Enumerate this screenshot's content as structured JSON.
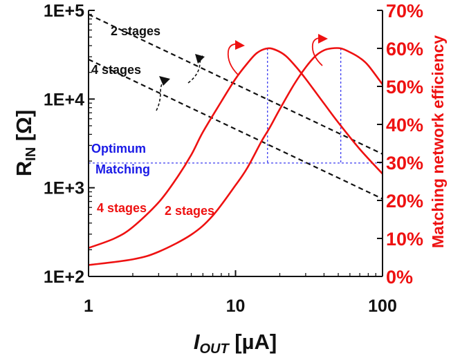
{
  "colors": {
    "rin": "#111111",
    "efficiency": "#ee1111",
    "guide": "#3a3af0",
    "annotation_blue": "#1a1ae6"
  },
  "chart_data": {
    "type": "line",
    "x_scale": "log",
    "xlim": [
      1,
      100
    ],
    "x_ticks": [
      "1",
      "10",
      "100"
    ],
    "xlabel_main": "I",
    "xlabel_sub": "OUT",
    "xlabel_unit": " [µA]",
    "left_axis": {
      "scale": "log",
      "ylim": [
        100,
        100000
      ],
      "ticks": [
        "1E+2",
        "1E+3",
        "1E+4",
        "1E+5"
      ],
      "label_main": "R",
      "label_sub": "IN",
      "label_unit": " [Ω]"
    },
    "right_axis": {
      "ylim": [
        0,
        70
      ],
      "ticks": [
        "0%",
        "10%",
        "20%",
        "30%",
        "40%",
        "50%",
        "60%",
        "70%"
      ],
      "label": "Matching network efficiency"
    },
    "rin_series": [
      {
        "label": "2 stages",
        "x": [
          1,
          100
        ],
        "y": [
          90000,
          2400
        ]
      },
      {
        "label": "4 stages",
        "x": [
          1,
          100
        ],
        "y": [
          28000,
          750
        ]
      }
    ],
    "efficiency_series": [
      {
        "label": "4 stages",
        "x": [
          1,
          1.5,
          2,
          3,
          4,
          5,
          6,
          8,
          10,
          12,
          14,
          16.5,
          19,
          22,
          26,
          30,
          40,
          50,
          70,
          100
        ],
        "y": [
          7.5,
          10,
          13,
          19.5,
          26,
          32,
          38,
          46,
          52,
          56,
          58.8,
          60,
          59.5,
          58,
          55,
          52,
          45.5,
          40.5,
          33.5,
          27
        ]
      },
      {
        "label": "2 stages",
        "x": [
          1,
          2,
          3,
          5,
          7,
          10,
          12,
          15,
          17,
          20,
          25,
          30,
          35,
          40,
          45,
          52,
          60,
          70,
          80,
          100
        ],
        "y": [
          3,
          4.5,
          6.5,
          11,
          16,
          24,
          28.5,
          35.5,
          39,
          44,
          50.5,
          55,
          58,
          59.5,
          60,
          60,
          59,
          57.5,
          55.5,
          50.5
        ]
      }
    ],
    "optimum_matching": {
      "label_line1": "Optimum",
      "label_line2": "Matching",
      "rin": 1900,
      "x_4stages": 16.5,
      "x_2stages": 52
    },
    "grid": false,
    "legend": "none"
  }
}
